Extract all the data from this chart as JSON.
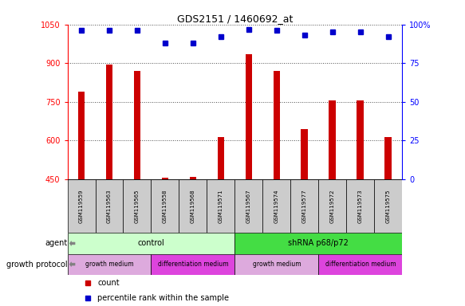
{
  "title": "GDS2151 / 1460692_at",
  "samples": [
    "GSM119559",
    "GSM119563",
    "GSM119565",
    "GSM119558",
    "GSM119568",
    "GSM119571",
    "GSM119567",
    "GSM119574",
    "GSM119577",
    "GSM119572",
    "GSM119573",
    "GSM119575"
  ],
  "counts": [
    790,
    895,
    870,
    455,
    460,
    615,
    935,
    870,
    645,
    755,
    755,
    615
  ],
  "percentiles": [
    96,
    96,
    96,
    88,
    88,
    92,
    97,
    96,
    93,
    95,
    95,
    92
  ],
  "ylim_left": [
    450,
    1050
  ],
  "ylim_right": [
    0,
    100
  ],
  "yticks_left": [
    450,
    600,
    750,
    900,
    1050
  ],
  "yticks_right": [
    0,
    25,
    50,
    75,
    100
  ],
  "bar_color": "#cc0000",
  "dot_color": "#0000cc",
  "agent_groups": [
    {
      "label": "control",
      "start": 0,
      "end": 6,
      "facecolor": "#ccffcc"
    },
    {
      "label": "shRNA p68/p72",
      "start": 6,
      "end": 12,
      "facecolor": "#44dd44"
    }
  ],
  "growth_groups": [
    {
      "label": "growth medium",
      "start": 0,
      "end": 3,
      "facecolor": "#ddaadd"
    },
    {
      "label": "differentiation medium",
      "start": 3,
      "end": 6,
      "facecolor": "#dd44dd"
    },
    {
      "label": "growth medium",
      "start": 6,
      "end": 9,
      "facecolor": "#ddaadd"
    },
    {
      "label": "differentiation medium",
      "start": 9,
      "end": 12,
      "facecolor": "#dd44dd"
    }
  ],
  "sample_bg_color": "#cccccc",
  "legend_count_label": "count",
  "legend_pct_label": "percentile rank within the sample",
  "agent_row_label": "agent",
  "growth_row_label": "growth protocol"
}
